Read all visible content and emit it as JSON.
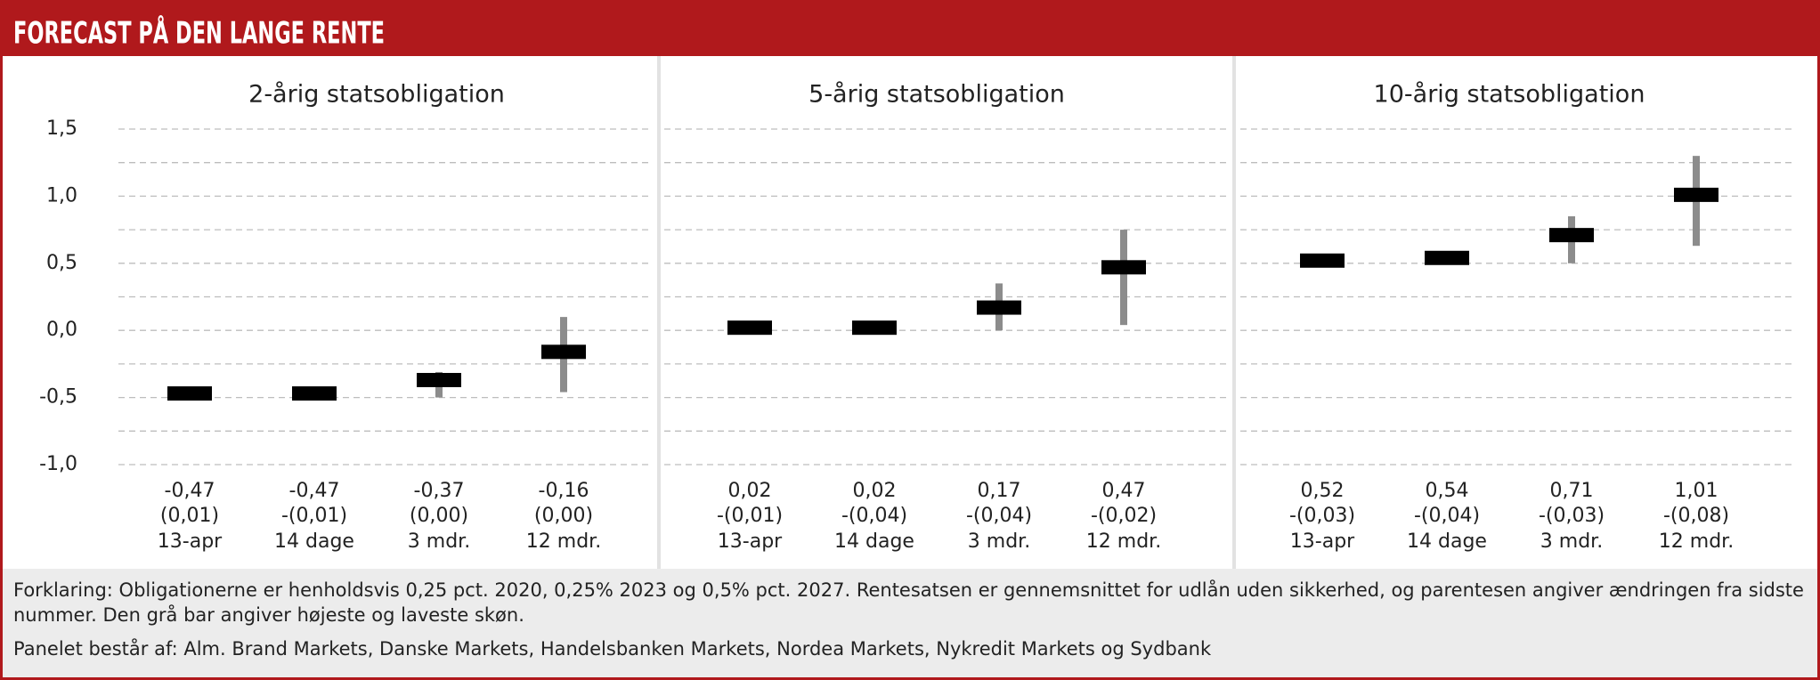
{
  "header": {
    "title": "FORECAST PÅ DEN LANGE RENTE"
  },
  "chart_data": [
    {
      "type": "range",
      "title": "2-årig statsobligation",
      "categories": [
        "13-apr",
        "14 dage",
        "3 mdr.",
        "12 mdr."
      ],
      "values": [
        -0.47,
        -0.47,
        -0.37,
        -0.16
      ],
      "value_labels": [
        "-0,47",
        "-0,47",
        "-0,37",
        "-0,16"
      ],
      "change_labels": [
        "(0,01)",
        "-(0,01)",
        "(0,00)",
        "(0,00)"
      ],
      "low": [
        -0.5,
        -0.52,
        -0.5,
        -0.46
      ],
      "high": [
        -0.45,
        -0.45,
        -0.31,
        0.1
      ],
      "color": "#000000",
      "range_color": "#8c8c8c",
      "ylim": [
        -1.0,
        1.5
      ],
      "yticks": [
        {
          "value": 1.5,
          "label": "1,5"
        },
        {
          "value": 1.0,
          "label": "1,0"
        },
        {
          "value": 0.5,
          "label": "0,5"
        },
        {
          "value": 0.0,
          "label": "0,0"
        },
        {
          "value": -0.5,
          "label": "-0,5"
        },
        {
          "value": -1.0,
          "label": "-1,0"
        }
      ],
      "minor_grid": [
        1.25,
        0.75,
        0.25,
        -0.25,
        -0.75
      ]
    },
    {
      "type": "range",
      "title": "5-årig statsobligation",
      "categories": [
        "13-apr",
        "14 dage",
        "3 mdr.",
        "12 mdr."
      ],
      "values": [
        0.02,
        0.02,
        0.17,
        0.47
      ],
      "value_labels": [
        "0,02",
        "0,02",
        "0,17",
        "0,47"
      ],
      "change_labels": [
        "-(0,01)",
        "-(0,04)",
        "-(0,04)",
        "-(0,02)"
      ],
      "low": [
        0.0,
        -0.02,
        0.0,
        0.04
      ],
      "high": [
        0.04,
        0.04,
        0.35,
        0.75
      ],
      "color": "#000000",
      "range_color": "#8c8c8c",
      "ylim": [
        -1.0,
        1.5
      ],
      "yticks": [
        1.5,
        1.0,
        0.5,
        0.0,
        -0.5,
        -1.0
      ],
      "minor_grid": [
        1.25,
        0.75,
        0.25,
        -0.25,
        -0.75
      ]
    },
    {
      "type": "range",
      "title": "10-årig statsobligation",
      "categories": [
        "13-apr",
        "14 dage",
        "3 mdr.",
        "12 mdr."
      ],
      "values": [
        0.52,
        0.54,
        0.71,
        1.01
      ],
      "value_labels": [
        "0,52",
        "0,54",
        "0,71",
        "1,01"
      ],
      "change_labels": [
        "-(0,03)",
        "-(0,04)",
        "-(0,03)",
        "-(0,08)"
      ],
      "low": [
        0.5,
        0.5,
        0.5,
        0.63
      ],
      "high": [
        0.55,
        0.57,
        0.85,
        1.3
      ],
      "color": "#000000",
      "range_color": "#8c8c8c",
      "ylim": [
        -1.0,
        1.5
      ],
      "yticks": [
        1.5,
        1.0,
        0.5,
        0.0,
        -0.5,
        -1.0
      ],
      "minor_grid": [
        1.25,
        0.75,
        0.25,
        -0.25,
        -0.75
      ]
    }
  ],
  "footer": {
    "notes": [
      "Forklaring: Obligationerne er henholdsvis 0,25 pct. 2020, 0,25% 2023 og 0,5% pct. 2027. Rentesatsen er gennemsnittet for udlån uden sikkerhed, og parentesen angiver ændringen fra sidste nummer. Den grå bar angiver højeste og laveste skøn.",
      "Panelet består af: Alm. Brand Markets, Danske Markets, Handelsbanken Markets, Nordea Markets, Nykredit Markets og Sydbank"
    ]
  }
}
